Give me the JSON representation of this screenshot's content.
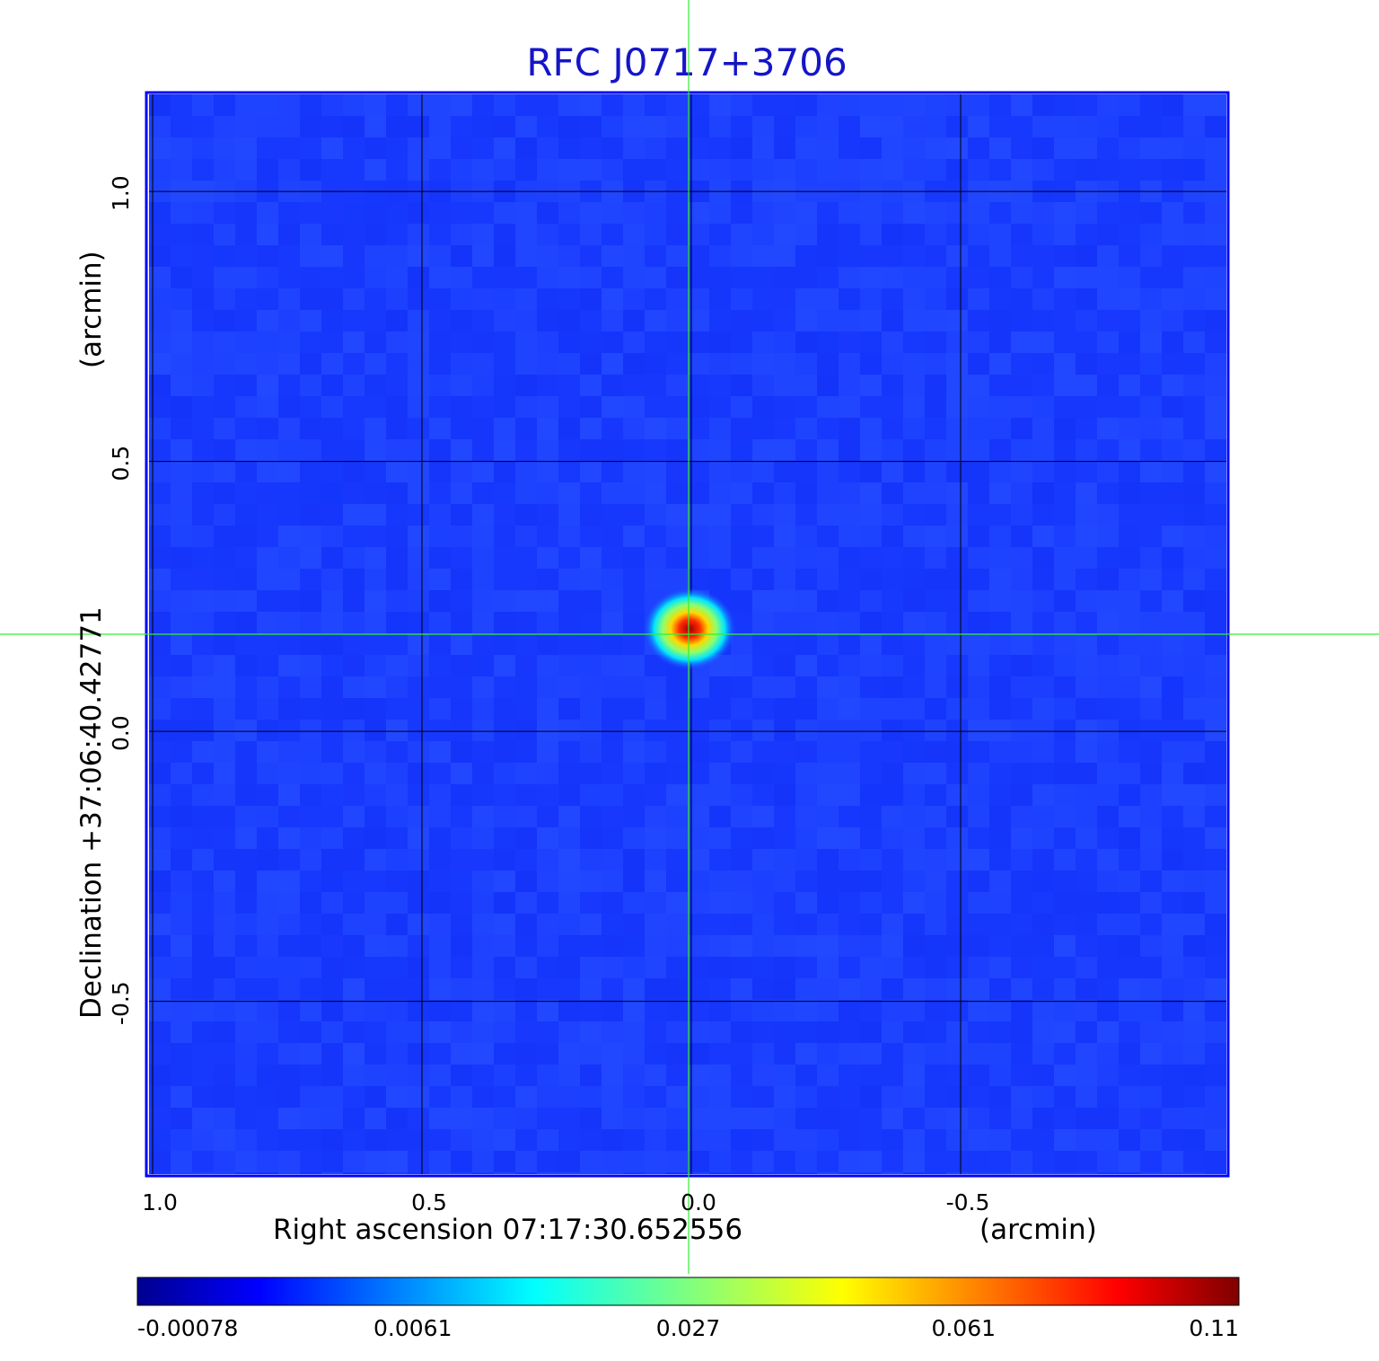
{
  "chart_data": {
    "type": "heatmap",
    "title": "RFC J0717+3706",
    "xlabel": "Right ascension  07:17:30.652556",
    "xunit": "(arcmin)",
    "ylabel": "Declination  +37:06:40.42771",
    "yunit": "(arcmin)",
    "xlim": [
      1.0,
      -1.0
    ],
    "ylim": [
      -0.82,
      1.18
    ],
    "x_ticks": [
      {
        "value": 1.0,
        "label": "1.0"
      },
      {
        "value": 0.5,
        "label": "0.5"
      },
      {
        "value": 0.0,
        "label": "0.0"
      },
      {
        "value": -0.5,
        "label": "-0.5"
      }
    ],
    "y_ticks": [
      {
        "value": 1.0,
        "label": "1.0"
      },
      {
        "value": 0.5,
        "label": "0.5"
      },
      {
        "value": 0.0,
        "label": "0.0"
      },
      {
        "value": -0.5,
        "label": "-0.5"
      }
    ],
    "grid": true,
    "crosshair": {
      "x": 0.0,
      "y": 0.18,
      "color": "#33ee33"
    },
    "source_peak": {
      "x": 0.0,
      "y": 0.18,
      "value": 0.11
    },
    "colorbar": {
      "labels": [
        "-0.00078",
        "0.0061",
        "0.027",
        "0.061",
        "0.11"
      ],
      "colormap": "jet",
      "placement": "bottom"
    },
    "colors": {
      "title": "#1515c8",
      "frame": "#0000ff",
      "background_map": "#1a3cff",
      "grid": "#000000"
    }
  }
}
